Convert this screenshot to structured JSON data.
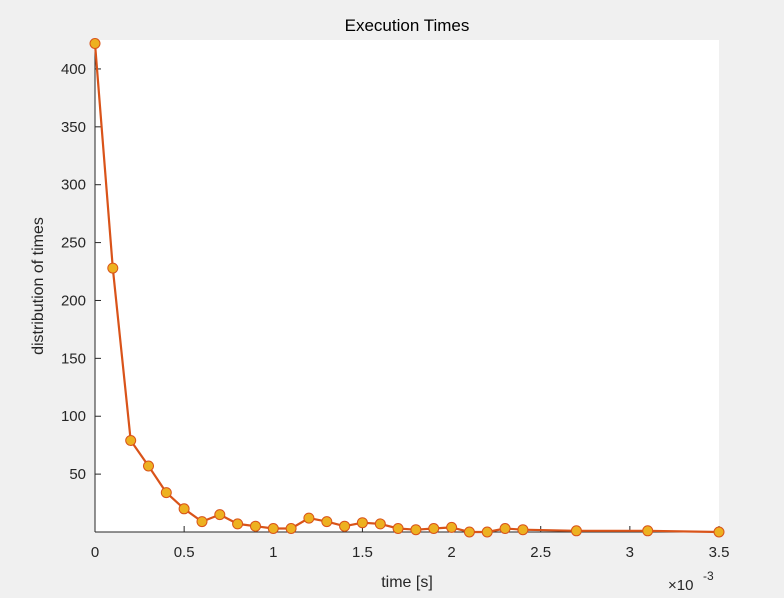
{
  "chart_data": {
    "type": "line",
    "title": "Execution Times",
    "xlabel": "time [s]",
    "ylabel": "distribution of times",
    "x_multiplier": {
      "base": "×10",
      "exponent": "-3"
    },
    "xlim": [
      0,
      3.5
    ],
    "ylim": [
      0,
      425
    ],
    "x_ticks": [
      "0",
      "0.5",
      "1",
      "1.5",
      "2",
      "2.5",
      "3",
      "3.5"
    ],
    "y_ticks": [
      "50",
      "100",
      "150",
      "200",
      "250",
      "300",
      "350",
      "400"
    ],
    "grid": false,
    "line_color": "#d95319",
    "marker_color": "#edb120",
    "series": [
      {
        "x": [
          0,
          0.1,
          0.2,
          0.3,
          0.4,
          0.5,
          0.6,
          0.7,
          0.8,
          0.9,
          1.0,
          1.1,
          1.2,
          1.3,
          1.4,
          1.5,
          1.6,
          1.7,
          1.8,
          1.9,
          2.0,
          2.1,
          2.2,
          2.3,
          2.4,
          2.7,
          3.1,
          3.5
        ],
        "y": [
          422,
          228,
          79,
          57,
          34,
          20,
          9,
          15,
          7,
          5,
          3,
          3,
          12,
          9,
          5,
          8,
          7,
          3,
          2,
          3,
          4,
          0,
          0,
          3,
          2,
          1,
          1,
          0
        ]
      }
    ]
  }
}
